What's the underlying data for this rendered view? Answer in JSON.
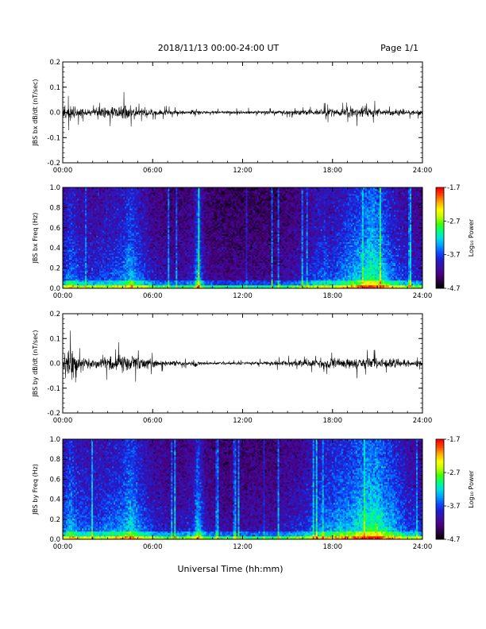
{
  "header": {
    "title": "2018/11/13  00:00-24:00 UT",
    "page": "Page 1/1"
  },
  "xaxis_label": "Universal Time (hh:mm)",
  "chart_data": [
    {
      "type": "line",
      "ylabel": "JBS bx dB/dt (nT/sec)",
      "xlim": [
        0,
        24
      ],
      "ylim": [
        -0.2,
        0.2
      ],
      "xticks": [
        "00:00",
        "06:00",
        "12:00",
        "18:00",
        "24:00"
      ],
      "yticks": [
        "-0.2",
        "-0.1",
        "0.0",
        "0.1",
        "0.2"
      ],
      "envelope": {
        "x_hours": [
          0,
          0.3,
          0.6,
          1.0,
          1.5,
          2.0,
          2.5,
          3.0,
          3.5,
          4.0,
          4.3,
          4.6,
          5.0,
          5.5,
          6.0,
          6.5,
          7.0,
          7.5,
          8.0,
          8.5,
          8.8,
          9.0,
          9.3,
          9.6,
          10.0,
          10.5,
          11.0,
          12.0,
          13.0,
          14.0,
          15.0,
          16.0,
          17.0,
          17.5,
          18.0,
          18.5,
          19.0,
          19.5,
          20.0,
          20.5,
          21.0,
          21.5,
          22.0,
          22.5,
          23.0,
          23.5,
          24.0
        ],
        "amplitude": [
          0.03,
          0.06,
          0.05,
          0.035,
          0.025,
          0.02,
          0.03,
          0.035,
          0.04,
          0.05,
          0.055,
          0.045,
          0.03,
          0.03,
          0.025,
          0.02,
          0.018,
          0.015,
          0.012,
          0.01,
          0.03,
          0.02,
          0.012,
          0.008,
          0.008,
          0.01,
          0.01,
          0.012,
          0.012,
          0.012,
          0.015,
          0.018,
          0.02,
          0.025,
          0.025,
          0.03,
          0.035,
          0.035,
          0.035,
          0.03,
          0.03,
          0.025,
          0.02,
          0.02,
          0.02,
          0.018,
          0.015
        ]
      }
    },
    {
      "type": "heatmap",
      "ylabel": "JBS bx Freq (Hz)",
      "colorbar_label": "Log₁₀ Power",
      "colorbar_ticks": [
        "-1.7",
        "-2.7",
        "-3.7",
        "-4.7"
      ],
      "clim": [
        -4.7,
        -1.7
      ],
      "xlim": [
        0,
        24
      ],
      "ylim": [
        0,
        1.0
      ],
      "xticks": [
        "00:00",
        "06:00",
        "12:00",
        "18:00",
        "24:00"
      ],
      "yticks": [
        "0.0",
        "0.2",
        "0.4",
        "0.6",
        "0.8",
        "1.0"
      ],
      "colormap": [
        "#000000",
        "#2a0048",
        "#4b0082",
        "#3a10a8",
        "#1e1ecf",
        "#0a50ff",
        "#00a0ff",
        "#00e0e0",
        "#00ff80",
        "#40ff00",
        "#c0ff00",
        "#ffff00",
        "#ffb000",
        "#ff5000",
        "#ff0000"
      ],
      "activity": {
        "x_hours": [
          0,
          0.5,
          1.0,
          2.0,
          3.0,
          4.0,
          4.5,
          5.0,
          6.0,
          7.0,
          8.0,
          8.7,
          9.0,
          9.5,
          10.0,
          12.0,
          14.0,
          16.0,
          17.5,
          18.0,
          18.5,
          19.0,
          20.0,
          20.5,
          21.0,
          21.5,
          22.0,
          23.0,
          24.0
        ],
        "level": [
          0.4,
          0.55,
          0.45,
          0.4,
          0.45,
          0.5,
          0.6,
          0.5,
          0.35,
          0.3,
          0.3,
          0.35,
          0.6,
          0.3,
          0.25,
          0.25,
          0.25,
          0.35,
          0.5,
          0.45,
          0.5,
          0.55,
          0.65,
          0.75,
          0.7,
          0.6,
          0.5,
          0.4,
          0.35
        ]
      }
    },
    {
      "type": "line",
      "ylabel": "JBS by dB/dt (nT/sec)",
      "xlim": [
        0,
        24
      ],
      "ylim": [
        -0.2,
        0.2
      ],
      "xticks": [
        "00:00",
        "06:00",
        "12:00",
        "18:00",
        "24:00"
      ],
      "yticks": [
        "-0.2",
        "-0.1",
        "0.0",
        "0.1",
        "0.2"
      ],
      "envelope": {
        "x_hours": [
          0,
          0.2,
          0.4,
          0.7,
          1.0,
          1.5,
          2.0,
          2.5,
          3.0,
          3.5,
          4.0,
          4.5,
          5.0,
          5.5,
          6.0,
          6.5,
          7.0,
          7.5,
          8.0,
          8.5,
          8.8,
          9.0,
          9.3,
          9.6,
          10.0,
          11.0,
          12.0,
          13.0,
          14.0,
          15.0,
          16.0,
          17.0,
          17.5,
          18.0,
          18.5,
          19.0,
          19.5,
          20.0,
          20.5,
          21.0,
          21.5,
          22.0,
          22.5,
          23.0,
          23.5,
          24.0
        ],
        "amplitude": [
          0.05,
          0.12,
          0.1,
          0.07,
          0.05,
          0.04,
          0.035,
          0.04,
          0.045,
          0.05,
          0.06,
          0.055,
          0.05,
          0.04,
          0.03,
          0.022,
          0.02,
          0.018,
          0.015,
          0.012,
          0.03,
          0.025,
          0.012,
          0.008,
          0.008,
          0.008,
          0.01,
          0.012,
          0.015,
          0.02,
          0.025,
          0.03,
          0.035,
          0.035,
          0.04,
          0.045,
          0.04,
          0.04,
          0.04,
          0.035,
          0.03,
          0.03,
          0.025,
          0.025,
          0.022,
          0.02
        ]
      }
    },
    {
      "type": "heatmap",
      "ylabel": "JBS by Freq (Hz)",
      "colorbar_label": "Log₁₀ Power",
      "colorbar_ticks": [
        "-1.7",
        "-2.7",
        "-3.7",
        "-4.7"
      ],
      "clim": [
        -4.7,
        -1.7
      ],
      "xlim": [
        0,
        24
      ],
      "ylim": [
        0,
        1.0
      ],
      "xticks": [
        "00:00",
        "06:00",
        "12:00",
        "18:00",
        "24:00"
      ],
      "yticks": [
        "0.0",
        "0.2",
        "0.4",
        "0.6",
        "0.8",
        "1.0"
      ],
      "colormap": [
        "#000000",
        "#2a0048",
        "#4b0082",
        "#3a10a8",
        "#1e1ecf",
        "#0a50ff",
        "#00a0ff",
        "#00e0e0",
        "#00ff80",
        "#40ff00",
        "#c0ff00",
        "#ffff00",
        "#ffb000",
        "#ff5000",
        "#ff0000"
      ],
      "activity": {
        "x_hours": [
          0,
          0.5,
          1.0,
          2.0,
          3.0,
          4.0,
          4.5,
          5.0,
          6.0,
          7.0,
          8.0,
          8.7,
          9.0,
          9.5,
          10.0,
          12.0,
          14.0,
          16.0,
          17.5,
          18.0,
          18.5,
          19.0,
          20.0,
          20.5,
          21.0,
          21.5,
          22.0,
          23.0,
          24.0
        ],
        "level": [
          0.45,
          0.6,
          0.5,
          0.45,
          0.5,
          0.55,
          0.65,
          0.55,
          0.4,
          0.35,
          0.35,
          0.4,
          0.65,
          0.35,
          0.3,
          0.3,
          0.3,
          0.4,
          0.55,
          0.55,
          0.6,
          0.6,
          0.7,
          0.75,
          0.75,
          0.65,
          0.6,
          0.45,
          0.4
        ]
      }
    }
  ]
}
